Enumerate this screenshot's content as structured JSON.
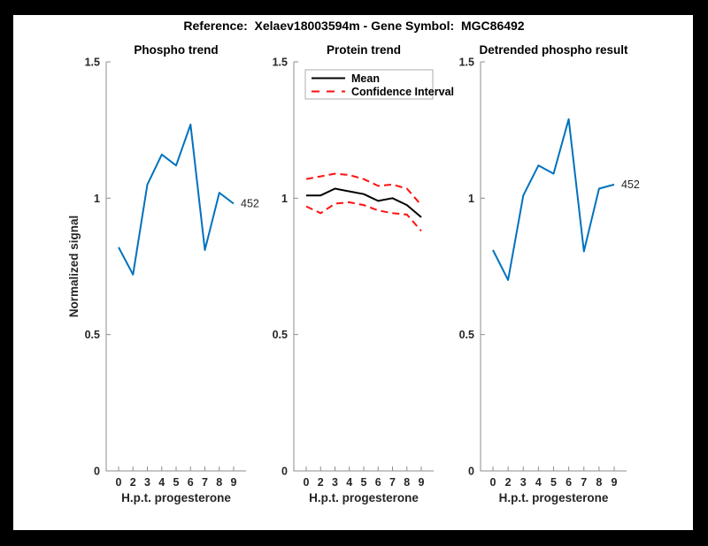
{
  "figure": {
    "title": "Reference:  Xelaev18003594m - Gene Symbol:  MGC86492"
  },
  "colors": {
    "blue_line": "#0072BD",
    "mean_line": "#000000",
    "ci_line": "#ff0f0f",
    "axis": "#8c8c8c",
    "text": "#262626",
    "legend_border": "#adadad",
    "figure_bg": "#ffffff",
    "frame_bg": "#000000"
  },
  "chart_data": [
    {
      "type": "line",
      "title": "Phospho trend",
      "xlabel": "H.p.t. progesterone",
      "ylabel": "Normalized signal",
      "x_tick_labels": [
        "0",
        "2",
        "3",
        "4",
        "5",
        "6",
        "7",
        "8",
        "9"
      ],
      "y_ticks": [
        "0",
        "0.5",
        "1",
        "1.5"
      ],
      "ylim": [
        0,
        1.5
      ],
      "grid": false,
      "end_label": "452",
      "series": [
        {
          "name": "phospho-signal",
          "color_key": "blue_line",
          "style": "solid",
          "values": [
            0.82,
            0.72,
            1.05,
            1.16,
            1.12,
            1.27,
            0.81,
            1.02,
            0.98
          ]
        }
      ]
    },
    {
      "type": "line",
      "title": "Protein trend",
      "xlabel": "H.p.t. progesterone",
      "ylabel": "",
      "x_tick_labels": [
        "0",
        "2",
        "3",
        "4",
        "5",
        "6",
        "7",
        "8",
        "9"
      ],
      "y_ticks": [
        "0",
        "0.5",
        "1",
        "1.5"
      ],
      "ylim": [
        0,
        1.5
      ],
      "grid": false,
      "legend": {
        "position": "top",
        "items": [
          {
            "label": "Mean",
            "color_key": "mean_line",
            "style": "solid"
          },
          {
            "label": "Confidence Interval",
            "color_key": "ci_line",
            "style": "dashed"
          }
        ]
      },
      "series": [
        {
          "name": "protein-mean",
          "color_key": "mean_line",
          "style": "solid",
          "values": [
            1.01,
            1.01,
            1.035,
            1.025,
            1.015,
            0.99,
            1.0,
            0.975,
            0.93
          ]
        },
        {
          "name": "confidence-upper",
          "color_key": "ci_line",
          "style": "dashed",
          "values": [
            1.07,
            1.08,
            1.09,
            1.085,
            1.07,
            1.045,
            1.05,
            1.035,
            0.975
          ]
        },
        {
          "name": "confidence-lower",
          "color_key": "ci_line",
          "style": "dashed",
          "values": [
            0.97,
            0.945,
            0.98,
            0.985,
            0.975,
            0.955,
            0.945,
            0.94,
            0.88
          ]
        }
      ]
    },
    {
      "type": "line",
      "title": "Detrended phospho result",
      "xlabel": "H.p.t. progesterone",
      "ylabel": "",
      "x_tick_labels": [
        "0",
        "2",
        "3",
        "4",
        "5",
        "6",
        "7",
        "8",
        "9"
      ],
      "y_ticks": [
        "0",
        "0.5",
        "1",
        "1.5"
      ],
      "ylim": [
        0,
        1.5
      ],
      "grid": false,
      "end_label": "452",
      "series": [
        {
          "name": "detrended-phospho",
          "color_key": "blue_line",
          "style": "solid",
          "values": [
            0.81,
            0.7,
            1.01,
            1.12,
            1.09,
            1.29,
            0.805,
            1.035,
            1.05
          ]
        }
      ]
    }
  ]
}
